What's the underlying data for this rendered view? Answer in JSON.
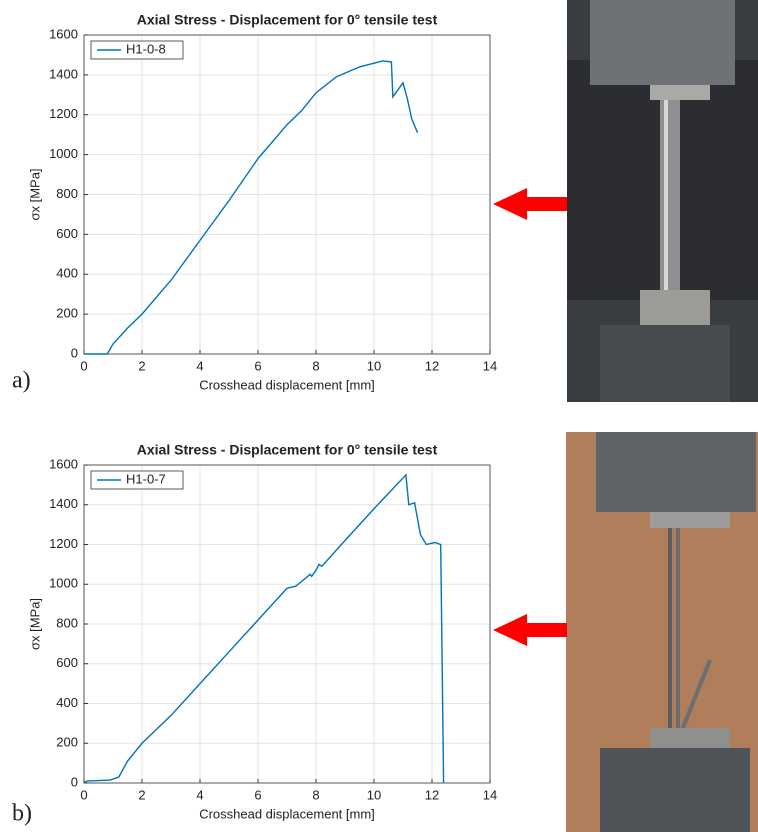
{
  "chart_data": [
    {
      "type": "line",
      "panel_label": "a)",
      "title": "Axial Stress - Displacement for 0° tensile test",
      "xlabel": "Crosshead displacement [mm]",
      "ylabel": "σx [MPa]",
      "xlim": [
        0,
        14
      ],
      "xticks": [
        0,
        2,
        4,
        6,
        8,
        10,
        12,
        14
      ],
      "ylim": [
        0,
        1600
      ],
      "yticks": [
        0,
        200,
        400,
        600,
        800,
        1000,
        1200,
        1400,
        1600
      ],
      "grid": true,
      "legend": "upper left",
      "series": [
        {
          "name": "H1-0-8",
          "color": "#0072bd",
          "x": [
            0,
            0.8,
            1,
            1.5,
            2,
            3,
            4,
            5,
            6,
            7,
            7.5,
            8,
            8.7,
            9.5,
            10.3,
            10.6,
            10.65,
            10.8,
            11,
            11.15,
            11.3,
            11.5
          ],
          "values": [
            0,
            0,
            50,
            130,
            200,
            370,
            570,
            770,
            980,
            1150,
            1220,
            1310,
            1390,
            1440,
            1470,
            1465,
            1290,
            1320,
            1360,
            1280,
            1180,
            1110
          ]
        }
      ]
    },
    {
      "type": "line",
      "panel_label": "b)",
      "title": "Axial Stress - Displacement for 0° tensile test",
      "xlabel": "Crosshead displacement [mm]",
      "ylabel": "σx [MPa]",
      "xlim": [
        0,
        14
      ],
      "xticks": [
        0,
        2,
        4,
        6,
        8,
        10,
        12,
        14
      ],
      "ylim": [
        0,
        1600
      ],
      "yticks": [
        0,
        200,
        400,
        600,
        800,
        1000,
        1200,
        1400,
        1600
      ],
      "grid": true,
      "legend": "upper left",
      "series": [
        {
          "name": "H1-0-7",
          "color": "#0072bd",
          "x": [
            0,
            0.1,
            0.9,
            1.2,
            1.5,
            2,
            3,
            4,
            5,
            6,
            7,
            7.3,
            7.8,
            7.85,
            8,
            8.1,
            8.2,
            9,
            10,
            11.1,
            11.2,
            11.4,
            11.6,
            11.8,
            12.1,
            12.3,
            12.4
          ],
          "values": [
            0,
            10,
            15,
            30,
            110,
            200,
            340,
            500,
            660,
            820,
            980,
            990,
            1050,
            1040,
            1070,
            1100,
            1090,
            1220,
            1380,
            1550,
            1400,
            1410,
            1250,
            1200,
            1210,
            1200,
            0
          ]
        }
      ]
    }
  ]
}
